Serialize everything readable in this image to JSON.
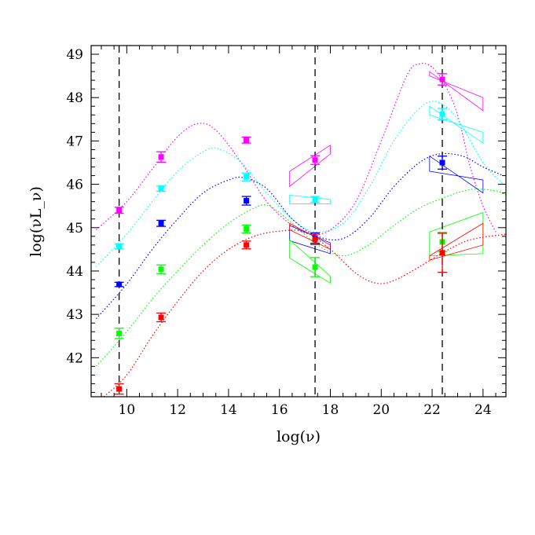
{
  "chart_data": {
    "type": "scatter",
    "xlabel": "log(ν)",
    "ylabel": "log(νL_ν)",
    "xlim": [
      8.6,
      24.9
    ],
    "ylim": [
      41.1,
      49.2
    ],
    "xticks": [
      10,
      12,
      14,
      16,
      18,
      20,
      22,
      24
    ],
    "yticks": [
      42,
      43,
      44,
      45,
      46,
      47,
      48,
      49
    ],
    "vlines": [
      9.7,
      17.4,
      22.4
    ],
    "grid": false,
    "series": [
      {
        "color": "#ff00ff",
        "points": [
          {
            "x": 9.7,
            "y": 45.4,
            "err": 0.07
          },
          {
            "x": 11.35,
            "y": 46.63,
            "err": 0.12
          },
          {
            "x": 14.7,
            "y": 47.02,
            "err": 0.07
          },
          {
            "x": 17.4,
            "y": 46.56,
            "err": 0.1
          },
          {
            "x": 22.4,
            "y": 48.42,
            "err": 0.13
          }
        ],
        "curve": [
          [
            8.8,
            44.95
          ],
          [
            10,
            45.6
          ],
          [
            11,
            46.35
          ],
          [
            12,
            47.1
          ],
          [
            12.8,
            47.4
          ],
          [
            13.5,
            47.25
          ],
          [
            14.5,
            46.5
          ],
          [
            15.5,
            45.6
          ],
          [
            16.5,
            45.05
          ],
          [
            17.2,
            44.85
          ],
          [
            18,
            44.95
          ],
          [
            19,
            45.6
          ],
          [
            20,
            47
          ],
          [
            21,
            48.5
          ],
          [
            21.5,
            48.78
          ],
          [
            22,
            48.7
          ],
          [
            22.5,
            48.3
          ],
          [
            23,
            47.6
          ],
          [
            23.5,
            46.4
          ],
          [
            24,
            45.5
          ],
          [
            24.5,
            44.9
          ]
        ],
        "bowties": [
          {
            "x1": 16.4,
            "x2": 18.0,
            "y1a": 45.95,
            "y1b": 46.3,
            "y2a": 46.7,
            "y2b": 46.9
          },
          {
            "x1": 21.9,
            "x2": 24.0,
            "y1a": 48.5,
            "y1b": 48.6,
            "y2a": 48.0,
            "y2b": 47.7
          }
        ]
      },
      {
        "color": "#00ffff",
        "points": [
          {
            "x": 9.7,
            "y": 44.57,
            "err": 0.06
          },
          {
            "x": 11.35,
            "y": 45.9,
            "err": 0.06
          },
          {
            "x": 14.7,
            "y": 46.17,
            "err": 0.09
          },
          {
            "x": 17.4,
            "y": 45.65,
            "err": 0.07
          },
          {
            "x": 22.4,
            "y": 47.62,
            "err": 0.13
          }
        ],
        "curve": [
          [
            8.8,
            44.1
          ],
          [
            10,
            44.85
          ],
          [
            11,
            45.6
          ],
          [
            12,
            46.3
          ],
          [
            13,
            46.75
          ],
          [
            13.6,
            46.82
          ],
          [
            14.5,
            46.5
          ],
          [
            15.5,
            45.8
          ],
          [
            16.5,
            45.2
          ],
          [
            17.4,
            44.9
          ],
          [
            18.5,
            45.1
          ],
          [
            19.5,
            45.9
          ],
          [
            20.5,
            47
          ],
          [
            21.5,
            47.75
          ],
          [
            22.2,
            47.9
          ],
          [
            23,
            47.5
          ],
          [
            24,
            46.5
          ],
          [
            24.8,
            46.0
          ]
        ],
        "bowties": [
          {
            "x1": 16.4,
            "x2": 18.0,
            "y1a": 45.55,
            "y1b": 45.75,
            "y2a": 45.55,
            "y2b": 45.65
          },
          {
            "x1": 21.9,
            "x2": 24.0,
            "y1a": 47.6,
            "y1b": 47.8,
            "y2a": 47.2,
            "y2b": 46.95
          }
        ]
      },
      {
        "color": "#0000ff",
        "points": [
          {
            "x": 9.7,
            "y": 43.69,
            "err": 0.05
          },
          {
            "x": 11.35,
            "y": 45.1,
            "err": 0.07
          },
          {
            "x": 14.7,
            "y": 45.62,
            "err": 0.1
          },
          {
            "x": 17.4,
            "y": 44.76,
            "err": 0.12
          },
          {
            "x": 22.4,
            "y": 46.5,
            "err": 0.15
          }
        ],
        "curve": [
          [
            8.8,
            42.9
          ],
          [
            10,
            43.7
          ],
          [
            11,
            44.5
          ],
          [
            12,
            45.2
          ],
          [
            13,
            45.8
          ],
          [
            14,
            46.1
          ],
          [
            14.6,
            46.15
          ],
          [
            15.5,
            45.9
          ],
          [
            16.5,
            45.2
          ],
          [
            17.5,
            44.8
          ],
          [
            18.5,
            44.75
          ],
          [
            19.5,
            45.2
          ],
          [
            20.5,
            45.95
          ],
          [
            21.5,
            46.5
          ],
          [
            22.3,
            46.7
          ],
          [
            23.2,
            46.65
          ],
          [
            24,
            46.4
          ],
          [
            24.8,
            46.2
          ]
        ],
        "bowties": [
          {
            "x1": 16.4,
            "x2": 18.0,
            "y1a": 44.7,
            "y1b": 45.05,
            "y2a": 44.4,
            "y2b": 44.65
          },
          {
            "x1": 21.9,
            "x2": 24.0,
            "y1a": 46.3,
            "y1b": 46.65,
            "y2a": 46.1,
            "y2b": 45.8
          }
        ]
      },
      {
        "color": "#00ff00",
        "points": [
          {
            "x": 9.7,
            "y": 42.56,
            "err": 0.12
          },
          {
            "x": 11.35,
            "y": 44.04,
            "err": 0.1
          },
          {
            "x": 14.7,
            "y": 44.97,
            "err": 0.09
          },
          {
            "x": 17.4,
            "y": 44.09,
            "err": 0.22
          },
          {
            "x": 22.4,
            "y": 44.67,
            "err": 0.22
          }
        ],
        "curve": [
          [
            8.8,
            41.8
          ],
          [
            10,
            42.6
          ],
          [
            11,
            43.35
          ],
          [
            12,
            44.0
          ],
          [
            13,
            44.6
          ],
          [
            14,
            45.1
          ],
          [
            15,
            45.45
          ],
          [
            15.6,
            45.5
          ],
          [
            16.5,
            45.1
          ],
          [
            17.5,
            44.6
          ],
          [
            18.5,
            44.35
          ],
          [
            19.5,
            44.6
          ],
          [
            20.5,
            45.05
          ],
          [
            21.5,
            45.45
          ],
          [
            22.5,
            45.7
          ],
          [
            23.5,
            45.88
          ],
          [
            24.5,
            45.85
          ],
          [
            24.9,
            45.75
          ]
        ],
        "bowties": [
          {
            "x1": 16.4,
            "x2": 18.0,
            "y1a": 44.3,
            "y1b": 44.72,
            "y2a": 43.72,
            "y2b": 43.88
          },
          {
            "x1": 21.9,
            "x2": 24.0,
            "y1a": 44.35,
            "y1b": 44.9,
            "y2a": 44.4,
            "y2b": 45.35
          }
        ]
      },
      {
        "color": "#ff0000",
        "points": [
          {
            "x": 9.7,
            "y": 41.28,
            "err": 0.12
          },
          {
            "x": 11.35,
            "y": 42.93,
            "err": 0.1
          },
          {
            "x": 14.7,
            "y": 44.6,
            "err": 0.09
          },
          {
            "x": 17.4,
            "y": 44.73,
            "err": 0.12
          },
          {
            "x": 22.4,
            "y": 44.42,
            "err": 0.45
          }
        ],
        "curve": [
          [
            9.1,
            41.1
          ],
          [
            10,
            41.6
          ],
          [
            11,
            42.5
          ],
          [
            12,
            43.3
          ],
          [
            13,
            44.0
          ],
          [
            14,
            44.5
          ],
          [
            15,
            44.8
          ],
          [
            16,
            44.92
          ],
          [
            17,
            44.9
          ],
          [
            18,
            44.5
          ],
          [
            19,
            43.95
          ],
          [
            19.8,
            43.72
          ],
          [
            20.5,
            43.78
          ],
          [
            21.5,
            44.1
          ],
          [
            22.5,
            44.45
          ],
          [
            23.5,
            44.72
          ],
          [
            24.9,
            44.85
          ]
        ],
        "bowties": [
          {
            "x1": 16.4,
            "x2": 18.0,
            "y1a": 44.95,
            "y1b": 45.1,
            "y2a": 44.5,
            "y2b": 44.6
          },
          {
            "x1": 21.9,
            "x2": 24.0,
            "y1a": 44.25,
            "y1b": 44.35,
            "y2a": 44.6,
            "y2b": 45.1
          }
        ]
      }
    ]
  }
}
